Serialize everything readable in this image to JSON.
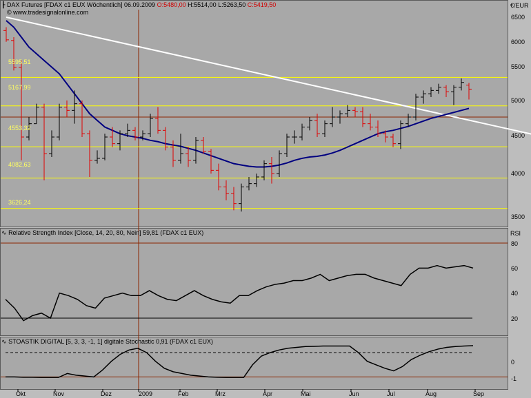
{
  "main_header": {
    "icon": "chart-indicator-icon",
    "instrument": "DAX Futures [FDAX c1 EUX  Wöchentlich]",
    "date": "06.09.2009",
    "open": "O:5480,00",
    "high": "H:5514,00",
    "low": "L:5263,50",
    "close": "C:5419,50",
    "watermark": "© www.tradesignalonline.com"
  },
  "price_axis": {
    "unit": "€/EUR",
    "ticks": [
      "6500",
      "6000",
      "5500",
      "5000",
      "4500",
      "4000",
      "3500"
    ]
  },
  "levels": [
    "5595,51",
    "5167,99",
    "4553,32",
    "4082,63",
    "3626,24"
  ],
  "rsi_header": {
    "icon": "indicator-icon",
    "label": "Relative Strength Index [Close, 14, 20, 80, Nein] 59,81 (FDAX c1 EUX)",
    "axis_label": "RSI",
    "ticks": [
      "80",
      "60",
      "40",
      "20"
    ]
  },
  "stoch_header": {
    "icon": "indicator-icon",
    "label": "STOASTIK DIGITAL [5, 3, 3, -1, 1] digitale Stochastic 0,91 (FDAX c1 EUX)",
    "ticks": [
      "0",
      "-1"
    ]
  },
  "months": [
    "Okt",
    "Nov",
    "Dez",
    "2009",
    "Feb",
    "Mrz",
    "Apr",
    "Mai",
    "Jun",
    "Jul",
    "Aug",
    "Sep"
  ],
  "colors": {
    "up": "#000000",
    "down": "#e00000",
    "ma": "#000080",
    "trend": "#ffffff",
    "level": "#ffff00",
    "rsi_bound": "#8b2500",
    "vline": "#8b2500"
  },
  "chart_data": {
    "type": "ohlc-bar",
    "price_range": [
      3500,
      6600
    ],
    "bars": [
      {
        "o": 6300,
        "h": 6350,
        "l": 6130,
        "c": 6160
      },
      {
        "o": 6150,
        "h": 6200,
        "l": 5700,
        "c": 5750
      },
      {
        "o": 5750,
        "h": 5850,
        "l": 4350,
        "c": 4700
      },
      {
        "o": 4700,
        "h": 5000,
        "l": 4650,
        "c": 4900
      },
      {
        "o": 4900,
        "h": 5200,
        "l": 4900,
        "c": 5150
      },
      {
        "o": 5150,
        "h": 5200,
        "l": 4050,
        "c": 4450
      },
      {
        "o": 4450,
        "h": 4800,
        "l": 4400,
        "c": 4700
      },
      {
        "o": 4700,
        "h": 5200,
        "l": 4650,
        "c": 5150
      },
      {
        "o": 5150,
        "h": 5250,
        "l": 5000,
        "c": 5100
      },
      {
        "o": 5100,
        "h": 5400,
        "l": 4900,
        "c": 5200
      },
      {
        "o": 5200,
        "h": 5250,
        "l": 4700,
        "c": 4750
      },
      {
        "o": 4750,
        "h": 4800,
        "l": 4100,
        "c": 4350
      },
      {
        "o": 4350,
        "h": 4500,
        "l": 4300,
        "c": 4380
      },
      {
        "o": 4380,
        "h": 4750,
        "l": 4350,
        "c": 4700
      },
      {
        "o": 4700,
        "h": 4850,
        "l": 4550,
        "c": 4600
      },
      {
        "o": 4600,
        "h": 4800,
        "l": 4500,
        "c": 4750
      },
      {
        "o": 4750,
        "h": 4900,
        "l": 4700,
        "c": 4800
      },
      {
        "o": 4800,
        "h": 4850,
        "l": 4650,
        "c": 4700
      },
      {
        "o": 4700,
        "h": 4800,
        "l": 4650,
        "c": 4750
      },
      {
        "o": 4750,
        "h": 5050,
        "l": 4700,
        "c": 4980
      },
      {
        "o": 4980,
        "h": 5150,
        "l": 4750,
        "c": 4800
      },
      {
        "o": 4800,
        "h": 4850,
        "l": 4500,
        "c": 4550
      },
      {
        "o": 4550,
        "h": 4650,
        "l": 4250,
        "c": 4350
      },
      {
        "o": 4350,
        "h": 4750,
        "l": 4300,
        "c": 4450
      },
      {
        "o": 4450,
        "h": 4550,
        "l": 4250,
        "c": 4350
      },
      {
        "o": 4350,
        "h": 4700,
        "l": 4300,
        "c": 4650
      },
      {
        "o": 4650,
        "h": 4700,
        "l": 4450,
        "c": 4480
      },
      {
        "o": 4480,
        "h": 4520,
        "l": 4150,
        "c": 4200
      },
      {
        "o": 4200,
        "h": 4300,
        "l": 3900,
        "c": 3950
      },
      {
        "o": 3950,
        "h": 4050,
        "l": 3750,
        "c": 3850
      },
      {
        "o": 3850,
        "h": 3950,
        "l": 3600,
        "c": 3700
      },
      {
        "o": 3700,
        "h": 4000,
        "l": 3580,
        "c": 3950
      },
      {
        "o": 3950,
        "h": 4100,
        "l": 3900,
        "c": 4000
      },
      {
        "o": 4000,
        "h": 4150,
        "l": 3950,
        "c": 4100
      },
      {
        "o": 4100,
        "h": 4350,
        "l": 4050,
        "c": 4300
      },
      {
        "o": 4300,
        "h": 4400,
        "l": 4000,
        "c": 4150
      },
      {
        "o": 4150,
        "h": 4500,
        "l": 4100,
        "c": 4450
      },
      {
        "o": 4450,
        "h": 4750,
        "l": 4400,
        "c": 4700
      },
      {
        "o": 4700,
        "h": 4800,
        "l": 4600,
        "c": 4700
      },
      {
        "o": 4700,
        "h": 4900,
        "l": 4650,
        "c": 4850
      },
      {
        "o": 4850,
        "h": 5000,
        "l": 4800,
        "c": 4950
      },
      {
        "o": 4950,
        "h": 5050,
        "l": 4700,
        "c": 4750
      },
      {
        "o": 4750,
        "h": 4950,
        "l": 4700,
        "c": 4900
      },
      {
        "o": 4900,
        "h": 5150,
        "l": 4850,
        "c": 5000
      },
      {
        "o": 5000,
        "h": 5100,
        "l": 4900,
        "c": 5050
      },
      {
        "o": 5050,
        "h": 5180,
        "l": 5000,
        "c": 5100
      },
      {
        "o": 5100,
        "h": 5150,
        "l": 5000,
        "c": 5080
      },
      {
        "o": 5080,
        "h": 5150,
        "l": 4850,
        "c": 4900
      },
      {
        "o": 4900,
        "h": 5050,
        "l": 4800,
        "c": 4850
      },
      {
        "o": 4850,
        "h": 4950,
        "l": 4700,
        "c": 4750
      },
      {
        "o": 4750,
        "h": 4800,
        "l": 4620,
        "c": 4700
      },
      {
        "o": 4700,
        "h": 4750,
        "l": 4550,
        "c": 4600
      },
      {
        "o": 4600,
        "h": 4950,
        "l": 4520,
        "c": 4900
      },
      {
        "o": 4900,
        "h": 5050,
        "l": 4850,
        "c": 5000
      },
      {
        "o": 5000,
        "h": 5350,
        "l": 4950,
        "c": 5300
      },
      {
        "o": 5300,
        "h": 5400,
        "l": 5200,
        "c": 5350
      },
      {
        "o": 5350,
        "h": 5450,
        "l": 5300,
        "c": 5400
      },
      {
        "o": 5400,
        "h": 5500,
        "l": 5350,
        "c": 5450
      },
      {
        "o": 5450,
        "h": 5480,
        "l": 5300,
        "c": 5380
      },
      {
        "o": 5380,
        "h": 5480,
        "l": 5180,
        "c": 5450
      },
      {
        "o": 5450,
        "h": 5580,
        "l": 5400,
        "c": 5520
      },
      {
        "o": 5480,
        "h": 5514,
        "l": 5263.5,
        "c": 5419.5
      }
    ],
    "moving_average": [
      6450,
      6350,
      6200,
      6050,
      5950,
      5850,
      5750,
      5650,
      5500,
      5350,
      5200,
      5050,
      4950,
      4850,
      4800,
      4750,
      4720,
      4700,
      4680,
      4650,
      4630,
      4600,
      4580,
      4560,
      4530,
      4500,
      4460,
      4420,
      4380,
      4340,
      4300,
      4280,
      4260,
      4250,
      4250,
      4260,
      4280,
      4310,
      4350,
      4380,
      4400,
      4410,
      4430,
      4460,
      4500,
      4550,
      4600,
      4650,
      4700,
      4750,
      4780,
      4800,
      4830,
      4860,
      4900,
      4940,
      4980,
      5010,
      5040,
      5070,
      5100,
      5130
    ],
    "trendline": [
      {
        "bar": 0,
        "price": 6500
      },
      {
        "bar": 71,
        "price": 4700
      }
    ],
    "levels": [
      5595.51,
      5167.99,
      4553.32,
      4082.63,
      3626.24
    ],
    "rsi": {
      "range": [
        0,
        100
      ],
      "bounds": [
        20,
        80
      ],
      "values": [
        35,
        28,
        18,
        22,
        24,
        20,
        40,
        38,
        35,
        30,
        28,
        36,
        38,
        40,
        38,
        38,
        42,
        38,
        35,
        34,
        38,
        42,
        38,
        35,
        33,
        32,
        38,
        38,
        42,
        45,
        47,
        48,
        50,
        50,
        52,
        55,
        50,
        52,
        54,
        55,
        55,
        52,
        50,
        48,
        46,
        55,
        60,
        60,
        62,
        60,
        61,
        62,
        60
      ]
    },
    "stoch": {
      "range": [
        -1.2,
        0.9
      ],
      "threshold": 0.5,
      "values": [
        -0.9,
        -0.9,
        -0.92,
        -0.92,
        -0.93,
        -0.93,
        -0.93,
        -0.7,
        -0.8,
        -0.85,
        -0.9,
        -0.5,
        0.0,
        0.4,
        0.65,
        0.75,
        0.5,
        0.0,
        -0.4,
        -0.6,
        -0.7,
        -0.8,
        -0.85,
        -0.9,
        -0.92,
        -0.93,
        -0.93,
        -0.93,
        -0.2,
        0.3,
        0.5,
        0.65,
        0.75,
        0.8,
        0.85,
        0.86,
        0.88,
        0.88,
        0.88,
        0.88,
        0.5,
        0.0,
        -0.2,
        -0.4,
        -0.55,
        -0.3,
        0.1,
        0.35,
        0.55,
        0.7,
        0.8,
        0.85,
        0.88,
        0.9
      ]
    }
  }
}
